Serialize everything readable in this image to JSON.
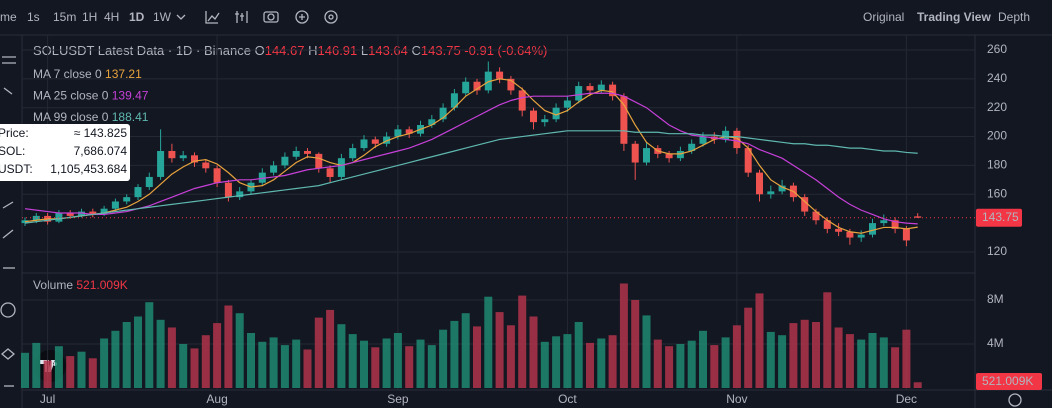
{
  "toolbar": {
    "intervals": [
      "me",
      "1s",
      "15m",
      "1H",
      "4H",
      "1D",
      "1W"
    ],
    "active_interval": 5,
    "views": [
      "Original",
      "Trading View",
      "Depth"
    ],
    "active_view": 1
  },
  "legend": {
    "title": "SOLUSDT Latest Data · 1D · Binance",
    "o": "O",
    "h": "H",
    "l": "L",
    "c": "C",
    "change": "-0.91 (-0.64%)",
    "volume_title": "Volume",
    "volume_value": "521.009K"
  },
  "tooltip": {
    "rows": [
      [
        "Price:",
        "≈ 143.825"
      ],
      [
        "SOL:",
        "7,686.074"
      ],
      [
        "USDT:",
        "1,105,453.684"
      ]
    ]
  },
  "chart_data": {
    "type": "candlestick",
    "categories": [
      null,
      null,
      "Jul",
      null,
      null,
      null,
      null,
      null,
      null,
      null,
      null,
      null,
      null,
      null,
      null,
      null,
      null,
      "Aug",
      null,
      null,
      null,
      null,
      null,
      null,
      null,
      null,
      null,
      null,
      null,
      null,
      null,
      null,
      null,
      "Sep",
      null,
      null,
      null,
      null,
      null,
      null,
      null,
      null,
      null,
      null,
      null,
      null,
      null,
      null,
      "Oct",
      null,
      null,
      null,
      null,
      null,
      null,
      null,
      null,
      null,
      null,
      null,
      null,
      null,
      null,
      "Nov",
      null,
      null,
      null,
      null,
      null,
      null,
      null,
      null,
      null,
      null,
      null,
      null,
      null,
      null,
      "Dec",
      null
    ],
    "candles": [
      [
        140,
        144,
        138,
        142
      ],
      [
        142,
        147,
        140,
        145
      ],
      [
        145,
        147,
        139,
        141
      ],
      [
        141,
        149,
        140,
        147
      ],
      [
        147,
        149,
        143,
        145
      ],
      [
        145,
        150,
        144,
        148
      ],
      [
        148,
        150,
        144,
        146
      ],
      [
        146,
        152,
        145,
        150
      ],
      [
        150,
        157,
        148,
        155
      ],
      [
        155,
        160,
        153,
        158
      ],
      [
        158,
        167,
        156,
        165
      ],
      [
        165,
        175,
        163,
        172
      ],
      [
        172,
        205,
        170,
        190
      ],
      [
        190,
        195,
        182,
        185
      ],
      [
        185,
        190,
        183,
        187
      ],
      [
        187,
        189,
        179,
        182
      ],
      [
        182,
        184,
        175,
        178
      ],
      [
        178,
        180,
        165,
        168
      ],
      [
        168,
        170,
        155,
        158
      ],
      [
        158,
        165,
        156,
        162
      ],
      [
        162,
        170,
        160,
        168
      ],
      [
        168,
        178,
        166,
        175
      ],
      [
        175,
        183,
        173,
        180
      ],
      [
        180,
        189,
        178,
        186
      ],
      [
        186,
        193,
        184,
        190
      ],
      [
        190,
        192,
        185,
        188
      ],
      [
        188,
        189,
        175,
        178
      ],
      [
        178,
        180,
        168,
        172
      ],
      [
        172,
        188,
        170,
        185
      ],
      [
        185,
        195,
        183,
        192
      ],
      [
        192,
        201,
        190,
        198
      ],
      [
        198,
        200,
        192,
        195
      ],
      [
        195,
        203,
        193,
        200
      ],
      [
        200,
        208,
        198,
        205
      ],
      [
        205,
        207,
        199,
        202
      ],
      [
        202,
        211,
        200,
        208
      ],
      [
        208,
        215,
        206,
        212
      ],
      [
        212,
        223,
        210,
        220
      ],
      [
        220,
        233,
        218,
        230
      ],
      [
        230,
        241,
        228,
        238
      ],
      [
        238,
        240,
        229,
        232
      ],
      [
        232,
        252,
        230,
        245
      ],
      [
        245,
        248,
        237,
        240
      ],
      [
        240,
        242,
        229,
        232
      ],
      [
        232,
        234,
        214,
        218
      ],
      [
        218,
        220,
        205,
        210
      ],
      [
        210,
        215,
        207,
        212
      ],
      [
        212,
        223,
        210,
        220
      ],
      [
        220,
        228,
        217,
        225
      ],
      [
        225,
        238,
        223,
        235
      ],
      [
        235,
        237,
        228,
        232
      ],
      [
        232,
        239,
        230,
        236
      ],
      [
        236,
        238,
        225,
        228
      ],
      [
        228,
        230,
        190,
        195
      ],
      [
        195,
        197,
        170,
        182
      ],
      [
        182,
        196,
        180,
        192
      ],
      [
        192,
        194,
        185,
        188
      ],
      [
        188,
        190,
        182,
        185
      ],
      [
        185,
        193,
        183,
        190
      ],
      [
        190,
        198,
        188,
        195
      ],
      [
        195,
        203,
        193,
        200
      ],
      [
        200,
        203,
        195,
        198
      ],
      [
        198,
        207,
        196,
        204
      ],
      [
        204,
        206,
        188,
        192
      ],
      [
        192,
        194,
        172,
        175
      ],
      [
        175,
        177,
        155,
        160
      ],
      [
        160,
        166,
        157,
        162
      ],
      [
        162,
        170,
        160,
        166
      ],
      [
        166,
        168,
        155,
        158
      ],
      [
        158,
        160,
        145,
        148
      ],
      [
        148,
        150,
        139,
        142
      ],
      [
        142,
        144,
        133,
        136
      ],
      [
        136,
        140,
        131,
        134
      ],
      [
        134,
        136,
        125,
        130
      ],
      [
        130,
        135,
        127,
        132
      ],
      [
        132,
        143,
        130,
        140
      ],
      [
        140,
        146,
        138,
        142
      ],
      [
        142,
        144,
        133,
        136
      ],
      [
        136,
        138,
        124,
        128
      ],
      [
        144.67,
        146.91,
        143.64,
        143.75
      ]
    ],
    "up_color": "#1f8a70",
    "down_color": "#b2344a",
    "series": [
      {
        "name": "MA 7 close 0",
        "color": "#e8a33d",
        "values": [
          141,
          142,
          143,
          143,
          144,
          145,
          146,
          147,
          149,
          151,
          155,
          160,
          167,
          174,
          179,
          183,
          184,
          181,
          175,
          168,
          165,
          166,
          170,
          176,
          182,
          186,
          185,
          182,
          180,
          182,
          187,
          193,
          197,
          200,
          202,
          205,
          208,
          213,
          220,
          228,
          233,
          238,
          240,
          239,
          233,
          225,
          218,
          215,
          218,
          224,
          229,
          232,
          231,
          222,
          208,
          196,
          190,
          188,
          188,
          190,
          194,
          198,
          200,
          199,
          192,
          180,
          170,
          165,
          162,
          155,
          148,
          142,
          137,
          134,
          133,
          135,
          137,
          137,
          136,
          137.21
        ]
      },
      {
        "name": "MA 25 close 0",
        "color": "#c640d8",
        "values": [
          150,
          149,
          148,
          147,
          147,
          147,
          146,
          146,
          147,
          148,
          150,
          152,
          155,
          158,
          161,
          164,
          166,
          168,
          169,
          170,
          170,
          171,
          172,
          173,
          175,
          177,
          178,
          179,
          180,
          182,
          184,
          186,
          188,
          190,
          192,
          195,
          198,
          202,
          206,
          210,
          214,
          218,
          222,
          225,
          227,
          228,
          228,
          228,
          228,
          229,
          230,
          230,
          230,
          228,
          224,
          220,
          214,
          208,
          204,
          201,
          200,
          199,
          198,
          197,
          195,
          191,
          188,
          185,
          180,
          175,
          170,
          164,
          158,
          153,
          149,
          146,
          143,
          141,
          140,
          139.47
        ]
      },
      {
        "name": "MA 99 close 0",
        "color": "#5fb8b0",
        "values": [
          140,
          141,
          142,
          143,
          144,
          145,
          146,
          147,
          148,
          149,
          150,
          151,
          152,
          153,
          154,
          155,
          156,
          157,
          158,
          159,
          160,
          161,
          162,
          163,
          164,
          165,
          166,
          168,
          170,
          172,
          174,
          176,
          178,
          180,
          182,
          184,
          186,
          188,
          190,
          192,
          194,
          196,
          198,
          199,
          200,
          201,
          202,
          203,
          204,
          204,
          204,
          204,
          204,
          204,
          203,
          203,
          203,
          202,
          202,
          202,
          201,
          201,
          200,
          200,
          199,
          198,
          197,
          196,
          195,
          195,
          194,
          194,
          193,
          192,
          192,
          191,
          190,
          190,
          189,
          188.41
        ]
      }
    ],
    "volumes": [
      3.2,
      4.1,
      2.5,
      3.8,
      2.9,
      3.3,
      2.7,
      4.5,
      5.2,
      6.0,
      6.5,
      7.8,
      6.2,
      5.5,
      4.0,
      3.6,
      4.8,
      5.9,
      7.5,
      6.8,
      5.0,
      4.2,
      4.6,
      3.9,
      4.4,
      3.5,
      6.4,
      7.1,
      5.8,
      4.9,
      4.3,
      3.7,
      4.5,
      5.0,
      3.8,
      4.4,
      3.9,
      5.3,
      6.1,
      6.8,
      5.6,
      8.3,
      6.9,
      5.7,
      8.4,
      6.5,
      4.2,
      4.7,
      4.9,
      6.0,
      4.1,
      4.5,
      4.8,
      9.5,
      8.0,
      6.6,
      4.4,
      3.8,
      4.0,
      4.3,
      5.2,
      3.9,
      4.6,
      5.7,
      7.3,
      8.6,
      5.1,
      4.8,
      5.9,
      6.2,
      6.0,
      8.7,
      5.5,
      4.9,
      4.4,
      5.0,
      4.6,
      3.7,
      5.3,
      0.521009
    ],
    "ylim": [
      107.5,
      270.4
    ],
    "yticks": [
      260,
      240,
      220,
      200,
      180,
      160,
      120
    ],
    "volume_ylim": [
      0,
      10
    ],
    "volume_yticks": [
      {
        "value": 8,
        "label": "8M"
      },
      {
        "value": 4,
        "label": "4M"
      }
    ],
    "grid": true
  }
}
